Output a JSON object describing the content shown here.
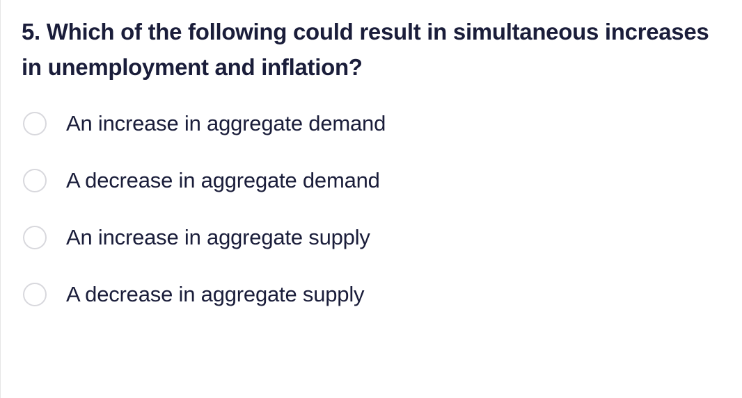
{
  "question": {
    "number": "5.",
    "text": "Which of the following could result in simultaneous increases in unemployment and inflation?",
    "text_color": "#1a1d3a",
    "font_size": 33,
    "font_weight": 700
  },
  "options": [
    {
      "label": "An increase in aggregate demand",
      "selected": false
    },
    {
      "label": "A decrease in aggregate demand",
      "selected": false
    },
    {
      "label": "An increase in aggregate supply",
      "selected": false
    },
    {
      "label": "A decrease in aggregate supply",
      "selected": false
    }
  ],
  "styling": {
    "background_color": "#ffffff",
    "option_text_color": "#1a1d3a",
    "option_font_size": 31,
    "radio_border_color": "#d8d8dd",
    "radio_size": 34,
    "option_gap": 46,
    "left_border_color": "#e5e5e5"
  }
}
